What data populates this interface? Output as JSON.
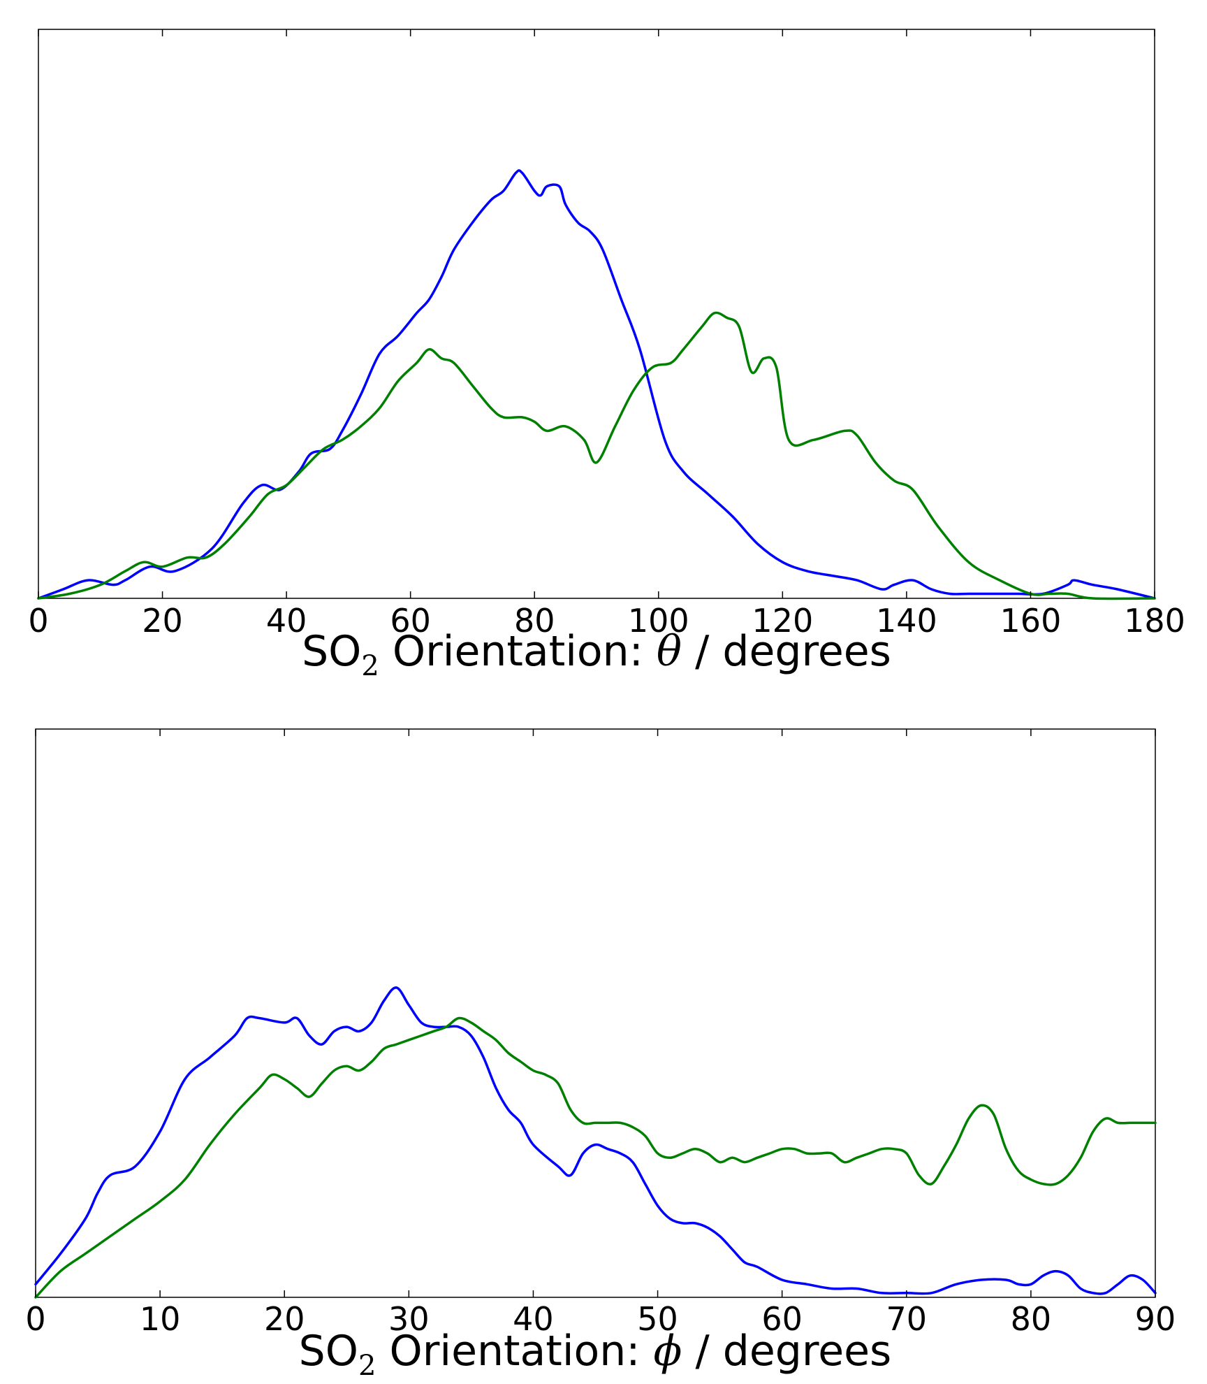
{
  "chart_data": [
    {
      "type": "line",
      "xlabel": {
        "prefix": "SO",
        "subscript": "2",
        "middle": " Orientation: ",
        "symbol": "θ",
        "suffix": " / degrees"
      },
      "xlim": [
        0,
        180
      ],
      "xticks": [
        "0",
        "20",
        "40",
        "60",
        "80",
        "100",
        "120",
        "140",
        "160",
        "180"
      ],
      "ylim": [
        0,
        100
      ],
      "yticks": [],
      "grid": false,
      "series": [
        {
          "color": "#0000ff",
          "x": [
            0,
            4,
            8,
            12,
            14,
            18,
            22,
            28,
            33,
            36,
            39,
            42,
            44,
            47,
            49,
            52,
            55,
            58,
            61,
            63,
            65,
            67,
            70,
            73,
            75,
            77,
            78,
            80,
            81,
            82,
            84,
            85,
            87,
            89,
            91,
            94,
            97,
            101,
            104,
            108,
            112,
            116,
            120,
            124,
            128,
            132,
            136,
            138,
            141,
            144,
            147,
            150,
            154,
            158,
            162,
            166,
            167,
            170,
            174,
            180
          ],
          "y": [
            0,
            2,
            4,
            3,
            4,
            7,
            6,
            11,
            21,
            25,
            24,
            28,
            32,
            33,
            37,
            45,
            54,
            58,
            63,
            66,
            71,
            77,
            83,
            88,
            90,
            94,
            94,
            90,
            89,
            91,
            91,
            87,
            83,
            81,
            77,
            66,
            55,
            35,
            28,
            23,
            18,
            12,
            8,
            6,
            5,
            4,
            2,
            3,
            4,
            2,
            1,
            1,
            1,
            1,
            1,
            3,
            4,
            3,
            2,
            0
          ]
        },
        {
          "color": "#008000",
          "x": [
            0,
            5,
            10,
            14,
            17,
            20,
            24,
            27,
            30,
            34,
            37,
            40,
            43,
            46,
            49,
            52,
            55,
            58,
            61,
            63,
            65,
            67,
            70,
            73,
            75,
            78,
            80,
            82,
            85,
            88,
            90,
            93,
            96,
            99,
            102,
            104,
            107,
            109,
            111,
            113,
            115,
            117,
            119,
            121,
            125,
            130,
            132,
            135,
            138,
            141,
            145,
            150,
            155,
            160,
            163,
            166,
            170,
            180
          ],
          "y": [
            0,
            1,
            3,
            6,
            8,
            7,
            9,
            9,
            12,
            18,
            23,
            25,
            29,
            33,
            35,
            38,
            42,
            48,
            52,
            55,
            53,
            52,
            47,
            42,
            40,
            40,
            39,
            37,
            38,
            35,
            30,
            38,
            46,
            51,
            52,
            55,
            60,
            63,
            62,
            60,
            50,
            53,
            51,
            35,
            35,
            37,
            36,
            30,
            26,
            24,
            16,
            8,
            4,
            1,
            1,
            1,
            0,
            0
          ]
        }
      ]
    },
    {
      "type": "line",
      "xlabel": {
        "prefix": "SO",
        "subscript": "2",
        "middle": " Orientation: ",
        "symbol": "ϕ",
        "suffix": " / degrees"
      },
      "xlim": [
        0,
        90
      ],
      "xticks": [
        "0",
        "10",
        "20",
        "30",
        "40",
        "50",
        "60",
        "70",
        "80",
        "90"
      ],
      "ylim": [
        0,
        100
      ],
      "yticks": [],
      "grid": false,
      "series": [
        {
          "color": "#0000ff",
          "x": [
            0,
            2,
            4,
            5,
            6,
            8,
            10,
            12,
            14,
            16,
            17,
            18,
            20,
            21,
            22,
            23,
            24,
            25,
            26,
            27,
            28,
            29,
            30,
            31,
            32,
            33,
            34,
            35,
            36,
            37,
            38,
            39,
            40,
            42,
            43,
            44,
            45,
            46,
            47,
            48,
            49,
            50,
            51,
            52,
            53,
            54,
            55,
            56,
            57,
            58,
            60,
            62,
            64,
            66,
            68,
            70,
            72,
            74,
            76,
            78,
            79,
            80,
            81,
            82,
            83,
            84,
            85,
            86,
            87,
            88,
            89,
            90
          ],
          "y": [
            3,
            10,
            18,
            24,
            28,
            30,
            38,
            50,
            55,
            60,
            64,
            64,
            63,
            64,
            60,
            58,
            61,
            62,
            61,
            63,
            68,
            71,
            67,
            63,
            62,
            62,
            62,
            60,
            55,
            48,
            43,
            40,
            35,
            30,
            28,
            33,
            35,
            34,
            33,
            31,
            26,
            21,
            18,
            17,
            17,
            16,
            14,
            11,
            8,
            7,
            4,
            3,
            2,
            2,
            1,
            1,
            1,
            3,
            4,
            4,
            3,
            3,
            5,
            6,
            5,
            2,
            1,
            1,
            3,
            5,
            4,
            1
          ],
          "y_note": ""
        },
        {
          "color": "#008000",
          "x": [
            0,
            2,
            4,
            6,
            8,
            10,
            12,
            14,
            16,
            18,
            19,
            20,
            21,
            22,
            23,
            24,
            25,
            26,
            27,
            28,
            29,
            30,
            31,
            32,
            33,
            34,
            35,
            36,
            37,
            38,
            39,
            40,
            41,
            42,
            43,
            44,
            45,
            46,
            47,
            48,
            49,
            50,
            51,
            52,
            53,
            54,
            55,
            56,
            57,
            58,
            59,
            60,
            61,
            62,
            63,
            64,
            65,
            66,
            67,
            68,
            69,
            70,
            71,
            72,
            73,
            74,
            75,
            76,
            77,
            78,
            79,
            80,
            81,
            82,
            83,
            84,
            85,
            86,
            87,
            88,
            89,
            90
          ],
          "y": [
            0,
            6,
            10,
            14,
            18,
            22,
            27,
            35,
            42,
            48,
            51,
            50,
            48,
            46,
            49,
            52,
            53,
            52,
            54,
            57,
            58,
            59,
            60,
            61,
            62,
            64,
            63,
            61,
            59,
            56,
            54,
            52,
            51,
            49,
            43,
            40,
            40,
            40,
            40,
            39,
            37,
            33,
            32,
            33,
            34,
            33,
            31,
            32,
            31,
            32,
            33,
            34,
            34,
            33,
            33,
            33,
            31,
            32,
            33,
            34,
            34,
            33,
            28,
            26,
            30,
            35,
            41,
            44,
            42,
            34,
            29,
            27,
            26,
            26,
            28,
            32,
            38,
            41,
            40,
            40,
            40,
            40
          ]
        }
      ]
    }
  ]
}
